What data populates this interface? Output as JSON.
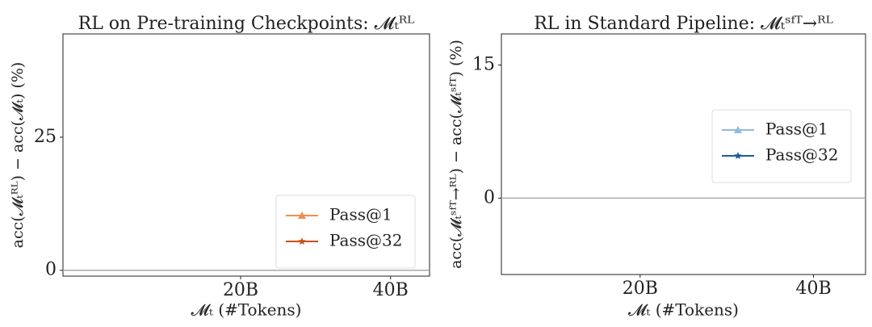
{
  "chart_data": [
    {
      "type": "line",
      "title": "RL on Pre-training Checkpoints: 𝓜ₜᴿᴸ",
      "x_label": "𝓜ₜ (#Tokens)",
      "y_label": "acc(𝓜ₜᴿᴸ) − acc(𝓜ₜ) (%)",
      "x": [],
      "series": [
        {
          "name": "Pass@1",
          "color": "#f28e4c",
          "marker": "triangle",
          "values": []
        },
        {
          "name": "Pass@32",
          "color": "#c9501c",
          "marker": "star",
          "values": []
        }
      ],
      "xlim": [
        -3.7,
        45.2
      ],
      "ylim": [
        -1.1,
        44.4
      ],
      "xticks": [
        {
          "value": 20,
          "label": "20B"
        },
        {
          "value": 40,
          "label": "40B"
        }
      ],
      "yticks": [
        0,
        25
      ],
      "hline": 0,
      "legend": "lower right"
    },
    {
      "type": "line",
      "title": "RL in Standard Pipeline: 𝓜ₜˢᶠᵀ→ᴿᴸ",
      "x_label": "𝓜ₜ (#Tokens)",
      "y_label": "acc(𝓜ₜˢᶠᵀ→ᴿᴸ) − acc(𝓜ₜˢᶠᵀ) (%)",
      "x": [],
      "series": [
        {
          "name": "Pass@1",
          "color": "#8fbcdb",
          "marker": "triangle",
          "values": []
        },
        {
          "name": "Pass@32",
          "color": "#1f5a99",
          "marker": "star",
          "values": []
        }
      ],
      "xlim": [
        4.0,
        46.0
      ],
      "ylim": [
        -8.6,
        18.5
      ],
      "xticks": [
        {
          "value": 20,
          "label": "20B"
        },
        {
          "value": 40,
          "label": "40B"
        }
      ],
      "yticks": [
        0,
        15
      ],
      "hline": 0,
      "legend": "center right"
    }
  ]
}
